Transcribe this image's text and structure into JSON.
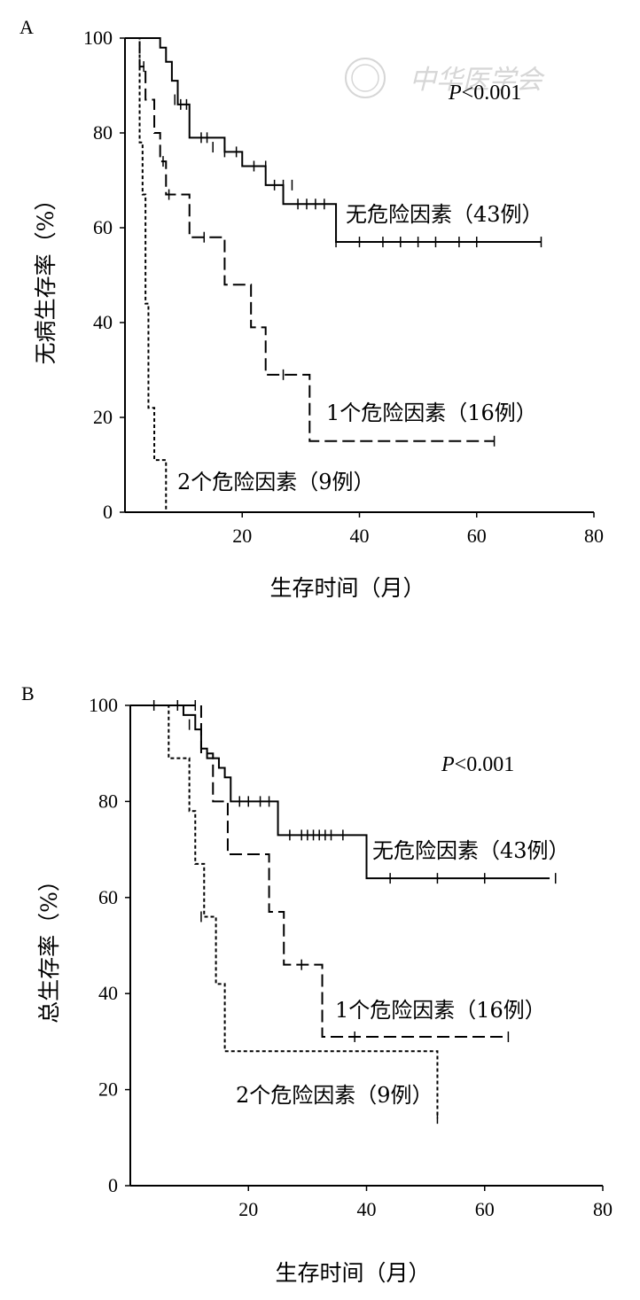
{
  "chart_data": [
    {
      "type": "line",
      "panel": "A",
      "ylabel": "无病生存率（%）",
      "xlabel": "生存时间（月）",
      "annotation": "P<0.001",
      "watermark": "中华医学会",
      "xlim": [
        0,
        80
      ],
      "ylim": [
        0,
        100
      ],
      "xticks": [
        20,
        40,
        60,
        80
      ],
      "yticks": [
        0,
        20,
        40,
        60,
        80,
        100
      ],
      "series": [
        {
          "name": "无危险因素（43例）",
          "line_style": "solid",
          "x": [
            0,
            4,
            6,
            7,
            8,
            9,
            11,
            17,
            20,
            24,
            27,
            30,
            36,
            71
          ],
          "y": [
            100,
            100,
            98,
            95,
            91,
            86,
            79,
            76,
            73,
            69,
            65,
            65,
            57,
            57
          ],
          "censored": [
            [
              8.5,
              87
            ],
            [
              9.5,
              86
            ],
            [
              10.5,
              86
            ],
            [
              13,
              79
            ],
            [
              14,
              79
            ],
            [
              15,
              77
            ],
            [
              17,
              76
            ],
            [
              19,
              76
            ],
            [
              22,
              73
            ],
            [
              24,
              73
            ],
            [
              25.5,
              69
            ],
            [
              27,
              69
            ],
            [
              28.5,
              69
            ],
            [
              29.5,
              65
            ],
            [
              31,
              65
            ],
            [
              32.5,
              65
            ],
            [
              34,
              65
            ],
            [
              36,
              57
            ],
            [
              40,
              57
            ],
            [
              44,
              57
            ],
            [
              47,
              57
            ],
            [
              50,
              57
            ],
            [
              53,
              57
            ],
            [
              57,
              57
            ],
            [
              60,
              57
            ],
            [
              71,
              57
            ]
          ]
        },
        {
          "name": "1个危险因素（16例）",
          "line_style": "dashed",
          "x": [
            0,
            2.5,
            3.5,
            5,
            6,
            7,
            11,
            17,
            21.5,
            24,
            31.5,
            63
          ],
          "y": [
            100,
            94,
            87,
            80,
            74,
            67,
            58,
            48,
            39,
            29,
            15,
            15
          ],
          "censored": [
            [
              3.2,
              94
            ],
            [
              6.5,
              74
            ],
            [
              7.5,
              67
            ],
            [
              13.5,
              58
            ],
            [
              27,
              29
            ],
            [
              63,
              15
            ]
          ]
        },
        {
          "name": "2个危险因素（9例）",
          "line_style": "dotted",
          "x": [
            0,
            2,
            2.5,
            3,
            3.5,
            4,
            5,
            6,
            7
          ],
          "y": [
            100,
            100,
            78,
            67,
            44,
            22,
            11,
            11,
            0
          ],
          "censored": []
        }
      ]
    },
    {
      "type": "line",
      "panel": "B",
      "ylabel": "总生存率（%）",
      "xlabel": "生存时间（月）",
      "annotation": "P<0.001",
      "xlim": [
        0,
        80
      ],
      "ylim": [
        0,
        100
      ],
      "xticks": [
        20,
        40,
        60,
        80
      ],
      "yticks": [
        0,
        20,
        40,
        60,
        80,
        100
      ],
      "series": [
        {
          "name": "无危险因素（43例）",
          "line_style": "solid",
          "x": [
            0,
            8,
            9,
            11,
            12,
            13,
            15,
            16,
            17,
            25,
            29,
            34,
            40,
            71
          ],
          "y": [
            100,
            100,
            98,
            95,
            91,
            89,
            87,
            85,
            80,
            73,
            73,
            73,
            64,
            64
          ],
          "censored": [
            [
              4,
              100
            ],
            [
              8,
              100
            ],
            [
              10,
              96
            ],
            [
              13,
              90
            ],
            [
              15,
              88
            ],
            [
              16,
              86
            ],
            [
              18.5,
              80
            ],
            [
              20,
              80
            ],
            [
              22,
              80
            ],
            [
              23.5,
              80
            ],
            [
              27,
              73
            ],
            [
              29,
              73
            ],
            [
              30,
              73
            ],
            [
              31,
              73
            ],
            [
              32,
              73
            ],
            [
              33,
              73
            ],
            [
              34,
              73
            ],
            [
              36,
              73
            ],
            [
              44,
              64
            ],
            [
              52,
              64
            ],
            [
              60,
              64
            ],
            [
              72,
              64
            ]
          ]
        },
        {
          "name": "1个危险因素（16例）",
          "line_style": "dashed",
          "x": [
            0,
            11,
            12,
            14,
            16.5,
            23.5,
            26,
            32.5,
            64
          ],
          "y": [
            100,
            100,
            90,
            80,
            69,
            57,
            46,
            31,
            31
          ],
          "censored": [
            [
              11,
              100
            ],
            [
              29,
              46
            ],
            [
              38,
              31
            ],
            [
              64,
              31
            ]
          ]
        },
        {
          "name": "2个危险因素（9例）",
          "line_style": "dotted",
          "x": [
            0,
            5,
            6.5,
            10,
            11,
            12.5,
            14.5,
            16,
            52
          ],
          "y": [
            100,
            100,
            89,
            78,
            67,
            56,
            42,
            28,
            14
          ],
          "censored": [
            [
              12,
              56
            ],
            [
              52,
              14
            ]
          ]
        }
      ]
    }
  ],
  "panels": [
    {
      "letter": "A",
      "ylabel": "无病生存率（%）",
      "xlabel": "生存时间（月）",
      "pvalue_prefix": "P",
      "pvalue_rest": "<0.001",
      "watermark": "中华医学会",
      "labels": [
        "无危险因素（43例）",
        "1个危险因素（16例）",
        "2个危险因素（9例）"
      ]
    },
    {
      "letter": "B",
      "ylabel": "总生存率（%）",
      "xlabel": "生存时间（月）",
      "pvalue_prefix": "P",
      "pvalue_rest": "<0.001",
      "labels": [
        "无危险因素（43例）",
        "1个危险因素（16例）",
        "2个危险因素（9例）"
      ]
    }
  ]
}
